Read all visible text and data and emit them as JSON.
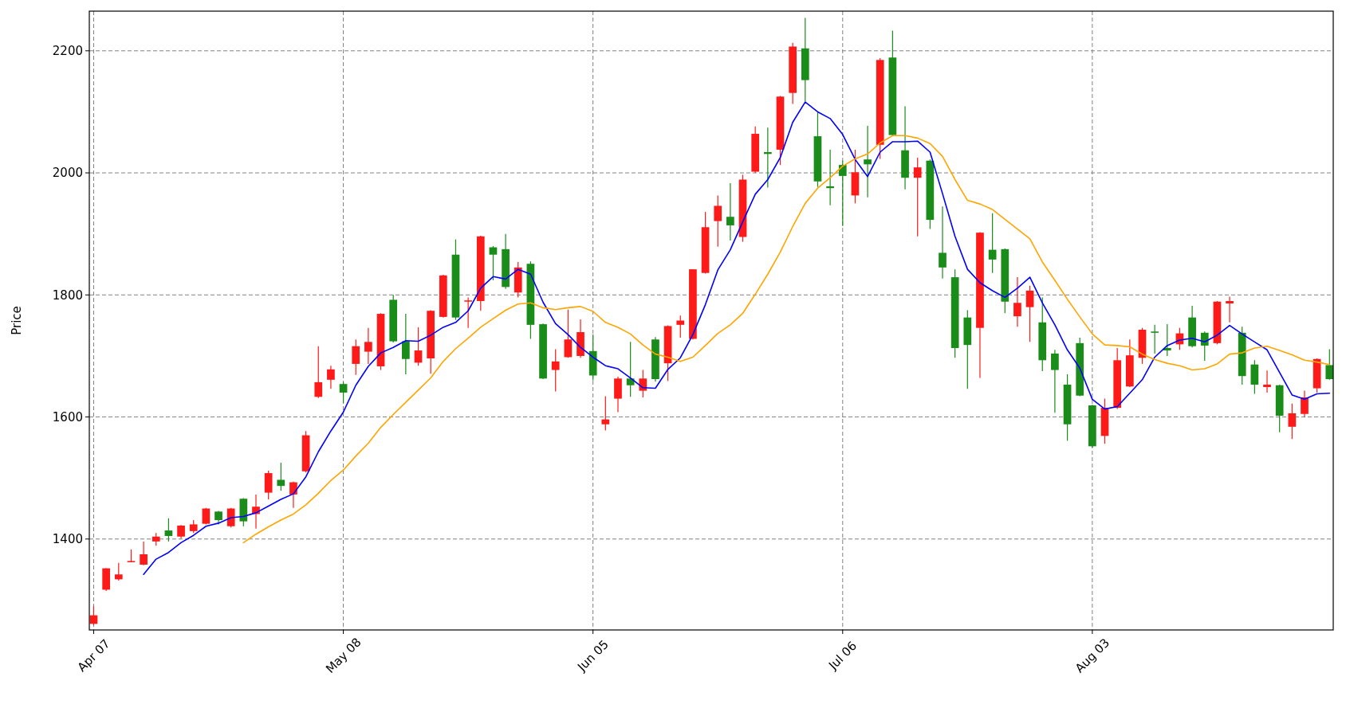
{
  "chart_data": {
    "type": "candlestick",
    "ylabel": "Price",
    "categories": [
      "Apr 07",
      null,
      null,
      null,
      null,
      null,
      null,
      null,
      null,
      null,
      null,
      null,
      null,
      null,
      null,
      null,
      null,
      null,
      null,
      null,
      "May 08",
      null,
      null,
      null,
      null,
      null,
      null,
      null,
      null,
      null,
      null,
      null,
      null,
      null,
      null,
      null,
      null,
      null,
      null,
      null,
      "Jun 05",
      null,
      null,
      null,
      null,
      null,
      null,
      null,
      null,
      null,
      null,
      null,
      null,
      null,
      null,
      null,
      null,
      null,
      null,
      null,
      "Jul 06",
      null,
      null,
      null,
      null,
      null,
      null,
      null,
      null,
      null,
      null,
      null,
      null,
      null,
      null,
      null,
      null,
      null,
      null,
      null,
      "Aug 03",
      null,
      null,
      null,
      null,
      null,
      null,
      null,
      null,
      null,
      null,
      null,
      null,
      null,
      null,
      null,
      null,
      null,
      null,
      null
    ],
    "ohlc": [
      [
        1261,
        1290,
        1259,
        1275
      ],
      [
        1317,
        1352,
        1315,
        1352
      ],
      [
        1334,
        1361,
        1332,
        1342
      ],
      [
        1362,
        1383,
        1362,
        1364
      ],
      [
        1358,
        1396,
        1357,
        1375
      ],
      [
        1396,
        1410,
        1389,
        1404
      ],
      [
        1414,
        1434,
        1396,
        1405
      ],
      [
        1404,
        1423,
        1401,
        1422
      ],
      [
        1413,
        1431,
        1410,
        1424
      ],
      [
        1425,
        1451,
        1424,
        1450
      ],
      [
        1445,
        1446,
        1424,
        1431
      ],
      [
        1421,
        1451,
        1419,
        1450
      ],
      [
        1466,
        1467,
        1421,
        1429
      ],
      [
        1441,
        1473,
        1417,
        1453
      ],
      [
        1476,
        1512,
        1465,
        1508
      ],
      [
        1497,
        1525,
        1479,
        1487
      ],
      [
        1473,
        1494,
        1451,
        1493
      ],
      [
        1511,
        1577,
        1509,
        1570
      ],
      [
        1633,
        1716,
        1631,
        1657
      ],
      [
        1661,
        1684,
        1646,
        1678
      ],
      [
        1654,
        1657,
        1623,
        1640
      ],
      [
        1687,
        1727,
        1669,
        1716
      ],
      [
        1707,
        1746,
        1687,
        1723
      ],
      [
        1683,
        1770,
        1677,
        1769
      ],
      [
        1792,
        1800,
        1722,
        1724
      ],
      [
        1724,
        1769,
        1670,
        1695
      ],
      [
        1689,
        1747,
        1684,
        1709
      ],
      [
        1696,
        1775,
        1671,
        1774
      ],
      [
        1764,
        1833,
        1763,
        1832
      ],
      [
        1866,
        1891,
        1759,
        1763
      ],
      [
        1789,
        1796,
        1746,
        1791
      ],
      [
        1790,
        1897,
        1774,
        1896
      ],
      [
        1878,
        1880,
        1824,
        1866
      ],
      [
        1875,
        1900,
        1810,
        1813
      ],
      [
        1804,
        1854,
        1796,
        1845
      ],
      [
        1851,
        1855,
        1728,
        1751
      ],
      [
        1752,
        1753,
        1662,
        1663
      ],
      [
        1677,
        1711,
        1642,
        1691
      ],
      [
        1698,
        1776,
        1697,
        1727
      ],
      [
        1700,
        1760,
        1697,
        1739
      ],
      [
        1708,
        1735,
        1660,
        1668
      ],
      [
        1588,
        1634,
        1578,
        1596
      ],
      [
        1630,
        1666,
        1608,
        1663
      ],
      [
        1663,
        1723,
        1633,
        1652
      ],
      [
        1643,
        1677,
        1632,
        1663
      ],
      [
        1727,
        1731,
        1658,
        1662
      ],
      [
        1688,
        1750,
        1659,
        1749
      ],
      [
        1751,
        1766,
        1730,
        1758
      ],
      [
        1728,
        1842,
        1727,
        1842
      ],
      [
        1836,
        1936,
        1835,
        1911
      ],
      [
        1921,
        1963,
        1879,
        1946
      ],
      [
        1928,
        1983,
        1889,
        1914
      ],
      [
        1895,
        1997,
        1887,
        1989
      ],
      [
        2002,
        2076,
        2000,
        2064
      ],
      [
        2034,
        2074,
        1976,
        2031
      ],
      [
        2038,
        2126,
        2013,
        2125
      ],
      [
        2131,
        2213,
        2113,
        2207
      ],
      [
        2204,
        2254,
        2117,
        2152
      ],
      [
        2060,
        2099,
        1977,
        1986
      ],
      [
        1978,
        2038,
        1947,
        1975
      ],
      [
        2013,
        2020,
        1913,
        1995
      ],
      [
        1963,
        2038,
        1950,
        2001
      ],
      [
        2022,
        2077,
        1960,
        2014
      ],
      [
        2046,
        2188,
        2023,
        2185
      ],
      [
        2189,
        2233,
        2061,
        2062
      ],
      [
        2037,
        2109,
        1973,
        1992
      ],
      [
        1992,
        2025,
        1896,
        2009
      ],
      [
        2020,
        2022,
        1908,
        1923
      ],
      [
        1869,
        1945,
        1827,
        1845
      ],
      [
        1829,
        1842,
        1697,
        1713
      ],
      [
        1763,
        1775,
        1646,
        1718
      ],
      [
        1746,
        1903,
        1664,
        1902
      ],
      [
        1874,
        1934,
        1836,
        1858
      ],
      [
        1875,
        1876,
        1770,
        1789
      ],
      [
        1765,
        1829,
        1748,
        1787
      ],
      [
        1780,
        1815,
        1723,
        1807
      ],
      [
        1755,
        1796,
        1675,
        1693
      ],
      [
        1704,
        1710,
        1607,
        1677
      ],
      [
        1653,
        1670,
        1561,
        1588
      ],
      [
        1721,
        1730,
        1634,
        1635
      ],
      [
        1619,
        1620,
        1550,
        1552
      ],
      [
        1569,
        1630,
        1556,
        1615
      ],
      [
        1615,
        1713,
        1613,
        1693
      ],
      [
        1650,
        1727,
        1649,
        1701
      ],
      [
        1697,
        1746,
        1687,
        1743
      ],
      [
        1740,
        1751,
        1704,
        1738
      ],
      [
        1713,
        1752,
        1700,
        1709
      ],
      [
        1719,
        1746,
        1710,
        1737
      ],
      [
        1763,
        1782,
        1714,
        1716
      ],
      [
        1738,
        1740,
        1692,
        1717
      ],
      [
        1721,
        1790,
        1719,
        1789
      ],
      [
        1786,
        1797,
        1755,
        1790
      ],
      [
        1738,
        1748,
        1653,
        1667
      ],
      [
        1686,
        1693,
        1638,
        1653
      ],
      [
        1649,
        1676,
        1640,
        1653
      ],
      [
        1652,
        1653,
        1575,
        1602
      ],
      [
        1584,
        1622,
        1564,
        1606
      ],
      [
        1605,
        1643,
        1600,
        1632
      ],
      [
        1647,
        1696,
        1640,
        1695
      ],
      [
        1685,
        1711,
        1661,
        1662
      ]
    ],
    "colors": [
      "#ff1a1a",
      "#ff1a1a",
      "#ff1a1a",
      "#ff1a1a",
      "#ff1a1a",
      "#ff1a1a",
      "#1a8c1a",
      "#ff1a1a",
      "#ff1a1a",
      "#ff1a1a",
      "#1a8c1a",
      "#ff1a1a",
      "#1a8c1a",
      "#ff1a1a",
      "#ff1a1a",
      "#1a8c1a",
      "#ff1a1a",
      "#ff1a1a",
      "#ff1a1a",
      "#ff1a1a",
      "#1a8c1a",
      "#ff1a1a",
      "#ff1a1a",
      "#ff1a1a",
      "#1a8c1a",
      "#1a8c1a",
      "#ff1a1a",
      "#ff1a1a",
      "#ff1a1a",
      "#1a8c1a",
      "#ff1a1a",
      "#ff1a1a",
      "#1a8c1a",
      "#1a8c1a",
      "#ff1a1a",
      "#1a8c1a",
      "#1a8c1a",
      "#ff1a1a",
      "#ff1a1a",
      "#ff1a1a",
      "#1a8c1a",
      "#ff1a1a",
      "#ff1a1a",
      "#1a8c1a",
      "#ff1a1a",
      "#1a8c1a",
      "#ff1a1a",
      "#ff1a1a",
      "#ff1a1a",
      "#ff1a1a",
      "#ff1a1a",
      "#1a8c1a",
      "#ff1a1a",
      "#ff1a1a",
      "#1a8c1a",
      "#ff1a1a",
      "#ff1a1a",
      "#1a8c1a",
      "#1a8c1a",
      "#1a8c1a",
      "#1a8c1a",
      "#ff1a1a",
      "#1a8c1a",
      "#ff1a1a",
      "#1a8c1a",
      "#1a8c1a",
      "#ff1a1a",
      "#1a8c1a",
      "#1a8c1a",
      "#1a8c1a",
      "#1a8c1a",
      "#ff1a1a",
      "#1a8c1a",
      "#1a8c1a",
      "#ff1a1a",
      "#ff1a1a",
      "#1a8c1a",
      "#1a8c1a",
      "#1a8c1a",
      "#1a8c1a",
      "#1a8c1a",
      "#ff1a1a",
      "#ff1a1a",
      "#ff1a1a",
      "#ff1a1a",
      "#1a8c1a",
      "#1a8c1a",
      "#ff1a1a",
      "#1a8c1a",
      "#1a8c1a",
      "#ff1a1a",
      "#ff1a1a",
      "#1a8c1a",
      "#1a8c1a",
      "#ff1a1a",
      "#1a8c1a",
      "#ff1a1a",
      "#ff1a1a",
      "#ff1a1a",
      "#1a8c1a"
    ],
    "series": [
      {
        "type": "line",
        "color": "#0000ff",
        "values": [
          null,
          null,
          null,
          null,
          1342,
          1367,
          1378,
          1394,
          1406,
          1421,
          1426,
          1435,
          1437,
          1443,
          1454,
          1465,
          1474,
          1502,
          1543,
          1577,
          1608,
          1652,
          1683,
          1705,
          1714,
          1725,
          1724,
          1734,
          1747,
          1755,
          1774,
          1811,
          1830,
          1826,
          1842,
          1834,
          1788,
          1753,
          1735,
          1714,
          1698,
          1684,
          1679,
          1664,
          1648,
          1647,
          1678,
          1697,
          1735,
          1784,
          1841,
          1874,
          1920,
          1965,
          1989,
          2025,
          2083,
          2116,
          2100,
          2089,
          2063,
          2022,
          1994,
          2034,
          2051,
          2051,
          2052,
          2034,
          1966,
          1896,
          1842,
          1820,
          1807,
          1796,
          1811,
          1829,
          1787,
          1751,
          1710,
          1680,
          1629,
          1613,
          1617,
          1639,
          1661,
          1698,
          1717,
          1726,
          1729,
          1723,
          1734,
          1750,
          1736,
          1723,
          1710,
          1673,
          1636,
          1629,
          1638,
          1639
        ]
      },
      {
        "type": "line",
        "color": "#ffa500",
        "values": [
          null,
          null,
          null,
          null,
          null,
          null,
          null,
          null,
          null,
          null,
          null,
          null,
          1394,
          1408,
          1420,
          1431,
          1441,
          1456,
          1475,
          1496,
          1513,
          1536,
          1557,
          1583,
          1604,
          1624,
          1644,
          1664,
          1691,
          1712,
          1729,
          1747,
          1761,
          1775,
          1785,
          1787,
          1779,
          1776,
          1779,
          1781,
          1773,
          1755,
          1747,
          1736,
          1718,
          1703,
          1698,
          1691,
          1698,
          1717,
          1737,
          1751,
          1770,
          1801,
          1834,
          1870,
          1912,
          1950,
          1975,
          1992,
          2011,
          2023,
          2031,
          2049,
          2061,
          2061,
          2057,
          2048,
          2027,
          1989,
          1955,
          1949,
          1940,
          1924,
          1908,
          1892,
          1854,
          1824,
          1793,
          1764,
          1736,
          1718,
          1717,
          1715,
          1703,
          1694,
          1688,
          1684,
          1677,
          1679,
          1687,
          1703,
          1705,
          1713,
          1716,
          1709,
          1702,
          1693,
          1690,
          1686
        ]
      }
    ],
    "ylim": [
      1251,
      2265
    ],
    "yticks": [
      1400,
      1600,
      1800,
      2000,
      2200
    ],
    "grid": true
  }
}
